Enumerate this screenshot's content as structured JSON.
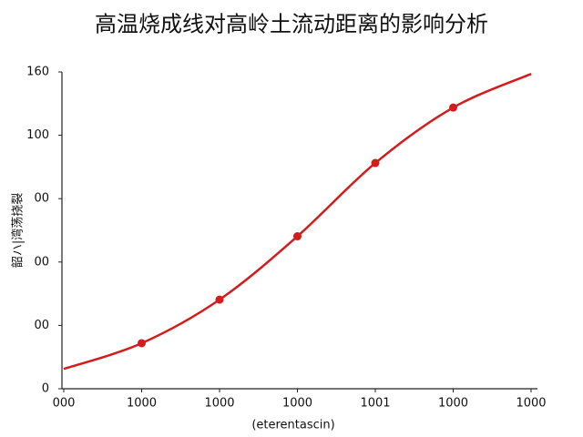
{
  "chart_data": {
    "type": "line",
    "title": "高温烧成线对高岭土流动距离的影响分析",
    "ylabel": "韶ハ|湾荡挠裂",
    "xlabel": "(eterentascin)",
    "x": [
      0,
      1,
      2,
      3,
      4,
      5,
      6
    ],
    "series": [
      {
        "color": "#d41c1c",
        "values": [
          10,
          23,
          45,
          77,
          114,
          142,
          159
        ]
      }
    ],
    "xlim": [
      0,
      6
    ],
    "xticks": [
      {
        "value": 0,
        "label": "000"
      },
      {
        "value": 1,
        "label": "1000"
      },
      {
        "value": 2,
        "label": "1000"
      },
      {
        "value": 3,
        "label": "1000"
      },
      {
        "value": 4,
        "label": "1001"
      },
      {
        "value": 5,
        "label": "1000"
      },
      {
        "value": 6,
        "label": "1000"
      }
    ],
    "ylim": [
      0,
      160
    ],
    "yticks": [
      {
        "value": 0,
        "label": "0"
      },
      {
        "value": 32,
        "label": "00"
      },
      {
        "value": 64,
        "label": "00"
      },
      {
        "value": 96,
        "label": "00"
      },
      {
        "value": 128,
        "label": "100"
      },
      160
    ],
    "grid": false
  }
}
